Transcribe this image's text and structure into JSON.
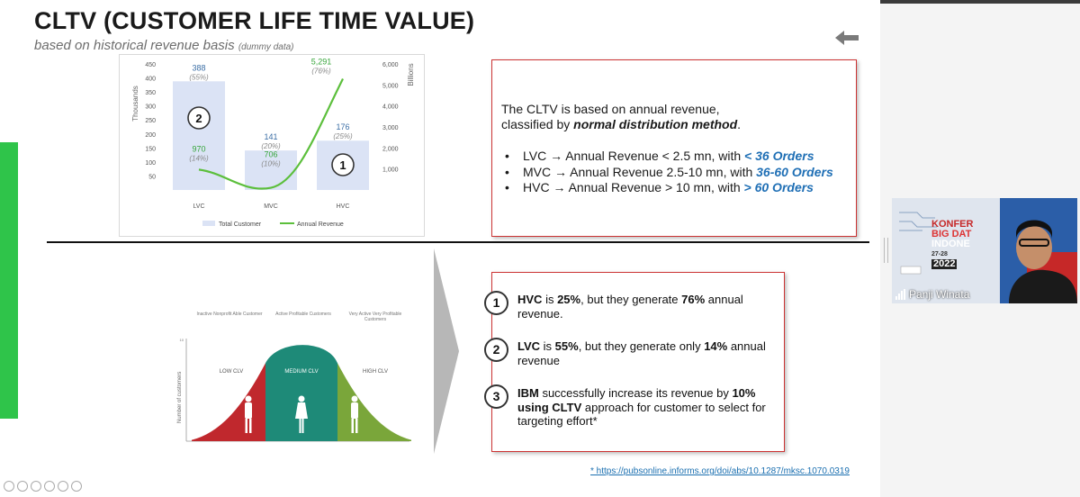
{
  "slide": {
    "title": "CLTV (CUSTOMER LIFE TIME VALUE)",
    "subtitle": "based on historical revenue basis",
    "subtitle_note": "(dummy data)"
  },
  "chart_data": {
    "type": "bar",
    "categories": [
      "LVC",
      "MVC",
      "HVC"
    ],
    "series": [
      {
        "name": "Total Customer",
        "type": "bar",
        "values": [
          388,
          141,
          176
        ],
        "labels": [
          "388",
          "141",
          "176"
        ],
        "pct": [
          "(55%)",
          "(20%)",
          "(25%)"
        ]
      },
      {
        "name": "Annual Revenue",
        "type": "line",
        "values": [
          970,
          706,
          5291
        ],
        "labels": [
          "970",
          "706",
          "5,291"
        ],
        "pct": [
          "(14%)",
          "(10%)",
          "(76%)"
        ]
      }
    ],
    "y_left": {
      "label": "Thousands",
      "ticks": [
        "450",
        "400",
        "350",
        "300",
        "250",
        "200",
        "150",
        "100",
        "50"
      ],
      "ylim": [
        0,
        450
      ]
    },
    "y_right": {
      "label": "Billions",
      "ticks": [
        "6,000",
        "5,000",
        "4,000",
        "3,000",
        "2,000",
        "1,000"
      ],
      "ylim": [
        0,
        6000
      ]
    },
    "rank_badges": [
      "2",
      "1"
    ],
    "legend_position": "bottom",
    "colors": {
      "bar": "#dbe3f5",
      "line": "#5cbf3c",
      "bar_label": "#3b6ea5",
      "line_label": "#36a53a"
    }
  },
  "info": {
    "intro_line1": "The CLTV is based on annual revenue,",
    "intro_line2_prefix": "classified by ",
    "intro_line2_bold": "normal distribution method",
    "intro_line2_suffix": ".",
    "items": [
      {
        "prefix": "LVC → Annual Revenue < 2.5 mn, with ",
        "highlight": "< 36 Orders"
      },
      {
        "prefix": "MVC → Annual Revenue 2.5-10 mn, with ",
        "highlight": "36-60 Orders"
      },
      {
        "prefix": "HVC → Annual Revenue > 10 mn, with ",
        "highlight": "> 60 Orders"
      }
    ]
  },
  "bell": {
    "headers": [
      "Inactive Nonprofit Able Customer",
      "Active Profitable Customers",
      "Very Active Very Profitable Customers"
    ],
    "y_label": "Number of customers",
    "y_top": "10",
    "segments": [
      "LOW CLV",
      "MEDIUM CLV",
      "HIGH CLV"
    ],
    "colors": {
      "low": "#c0282d",
      "medium": "#1e8a78",
      "high": "#7aa63a"
    }
  },
  "points": [
    {
      "num": "1",
      "bold1": "HVC",
      "t1": " is ",
      "bold2": "25%",
      "t2": ", but they generate ",
      "bold3": "76%",
      "t3": " annual revenue."
    },
    {
      "num": "2",
      "bold1": "LVC",
      "t1": " is ",
      "bold2": "55%",
      "t2": ", but they generate only ",
      "bold3": "14%",
      "t3": " annual revenue"
    },
    {
      "num": "3",
      "bold1": "IBM",
      "t1": " successfully increase its revenue by ",
      "bold2": "10% using CLTV",
      "t2": " approach for customer to select for targeting effort*",
      "bold3": "",
      "t3": ""
    }
  ],
  "reference": "* https://pubsonline.informs.org/doi/abs/10.1287/mksc.1070.0319",
  "video": {
    "participant_name": "Panji Winata",
    "banner_lines": [
      "KONFER",
      "BIG DAT",
      "INDONE",
      "27-28",
      "2022"
    ]
  }
}
